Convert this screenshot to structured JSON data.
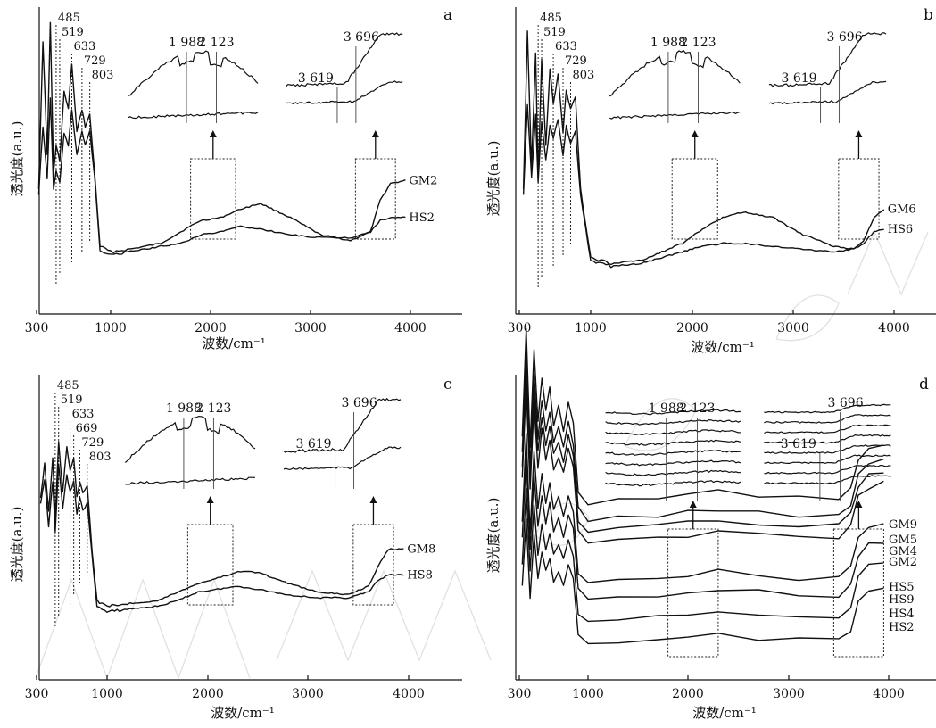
{
  "chart_data": [
    {
      "panel": "a",
      "type": "line",
      "xlabel": "波数/cm⁻¹",
      "ylabel": "透光度(a.u.)",
      "xlim": [
        300,
        4500
      ],
      "xticks": [
        300,
        1000,
        2000,
        3000,
        4000
      ],
      "peaks": [
        485,
        519,
        633,
        729,
        803
      ],
      "series": [
        {
          "name": "GM2",
          "x": [
            320,
            360,
            400,
            430,
            460,
            485,
            519,
            560,
            600,
            633,
            680,
            729,
            760,
            803,
            850,
            900,
            1000,
            1200,
            1500,
            1700,
            1900,
            2100,
            2300,
            2500,
            2800,
            3100,
            3400,
            3600,
            3696,
            3800,
            3950
          ],
          "y": [
            40,
            92,
            52,
            98,
            46,
            55,
            50,
            74,
            68,
            84,
            60,
            68,
            62,
            66,
            45,
            20,
            18,
            19,
            21,
            25,
            29,
            30,
            33,
            35,
            30,
            24,
            22,
            25,
            36,
            42,
            43
          ]
        },
        {
          "name": "HS2",
          "x": [
            320,
            360,
            400,
            430,
            460,
            485,
            519,
            560,
            600,
            633,
            680,
            729,
            760,
            803,
            850,
            900,
            1000,
            1200,
            1500,
            1700,
            1900,
            2100,
            2300,
            2500,
            2800,
            3100,
            3400,
            3600,
            3696,
            3800,
            3950
          ],
          "y": [
            38,
            62,
            44,
            72,
            40,
            46,
            42,
            60,
            55,
            68,
            52,
            60,
            56,
            60,
            44,
            18,
            17,
            18,
            20,
            21,
            24,
            25,
            27,
            26,
            24,
            23,
            23,
            25,
            29,
            30,
            30
          ]
        }
      ],
      "insets": [
        {
          "anchor_x": [
            1800,
            2250
          ],
          "marks": [
            "1 988",
            "2 123"
          ]
        },
        {
          "anchor_x": [
            3450,
            3850
          ],
          "marks": [
            "3 619",
            "3 696"
          ]
        }
      ]
    },
    {
      "panel": "b",
      "type": "line",
      "xlabel": "波数/cm⁻¹",
      "ylabel": "透光度(a.u.)",
      "xlim": [
        300,
        4500
      ],
      "xticks": [
        300,
        1000,
        2000,
        3000,
        4000
      ],
      "peaks": [
        485,
        519,
        633,
        729,
        803
      ],
      "series": [
        {
          "name": "GM6",
          "x": [
            340,
            380,
            420,
            460,
            485,
            519,
            560,
            600,
            633,
            680,
            729,
            760,
            803,
            850,
            900,
            1000,
            1200,
            1500,
            1700,
            1900,
            2100,
            2300,
            2500,
            2800,
            3100,
            3400,
            3600,
            3696,
            3800,
            3900
          ],
          "y": [
            40,
            95,
            48,
            88,
            44,
            85,
            55,
            82,
            70,
            80,
            60,
            75,
            68,
            72,
            40,
            16,
            14,
            15,
            18,
            21,
            26,
            30,
            32,
            30,
            24,
            20,
            19,
            22,
            30,
            33
          ]
        },
        {
          "name": "HS6",
          "x": [
            340,
            380,
            420,
            460,
            485,
            519,
            560,
            600,
            633,
            680,
            729,
            760,
            803,
            850,
            900,
            1000,
            1200,
            1500,
            1700,
            1900,
            2100,
            2300,
            2500,
            2800,
            3100,
            3400,
            3600,
            3696,
            3800,
            3900
          ],
          "y": [
            38,
            70,
            44,
            66,
            42,
            64,
            50,
            62,
            58,
            64,
            52,
            62,
            56,
            60,
            38,
            15,
            13,
            14,
            16,
            18,
            20,
            21,
            21,
            20,
            19,
            18,
            19,
            21,
            25,
            26
          ]
        }
      ],
      "insets": [
        {
          "anchor_x": [
            1800,
            2250
          ],
          "marks": [
            "1 988",
            "2 123"
          ]
        },
        {
          "anchor_x": [
            3450,
            3850
          ],
          "marks": [
            "3 619",
            "3 696"
          ]
        }
      ]
    },
    {
      "panel": "c",
      "type": "line",
      "xlabel": "波数/cm⁻¹",
      "ylabel": "透光度(a.u.)",
      "xlim": [
        300,
        4500
      ],
      "xticks": [
        300,
        1000,
        2000,
        3000,
        4000
      ],
      "peaks": [
        485,
        519,
        633,
        669,
        729,
        803
      ],
      "series": [
        {
          "name": "GM8",
          "x": [
            340,
            380,
            420,
            460,
            485,
            519,
            560,
            600,
            633,
            669,
            700,
            729,
            760,
            803,
            850,
            900,
            1000,
            1200,
            1500,
            1700,
            1900,
            2100,
            2300,
            2500,
            2800,
            3100,
            3400,
            3600,
            3696,
            3800,
            3950
          ],
          "y": [
            60,
            72,
            55,
            74,
            52,
            80,
            62,
            78,
            70,
            74,
            60,
            66,
            62,
            64,
            42,
            24,
            22,
            23,
            24,
            27,
            30,
            32,
            34,
            34,
            30,
            27,
            26,
            29,
            36,
            42,
            42
          ]
        },
        {
          "name": "HS8",
          "x": [
            340,
            380,
            420,
            460,
            485,
            519,
            560,
            600,
            633,
            669,
            700,
            729,
            760,
            803,
            850,
            900,
            1000,
            1200,
            1500,
            1700,
            1900,
            2100,
            2300,
            2500,
            2800,
            3100,
            3400,
            3600,
            3696,
            3800,
            3950
          ],
          "y": [
            58,
            66,
            50,
            66,
            48,
            72,
            56,
            68,
            62,
            66,
            54,
            60,
            56,
            58,
            40,
            22,
            20,
            21,
            22,
            24,
            27,
            28,
            29,
            28,
            26,
            25,
            25,
            27,
            31,
            33,
            33
          ]
        }
      ],
      "insets": [
        {
          "anchor_x": [
            1800,
            2250
          ],
          "marks": [
            "1 988",
            "2 123"
          ]
        },
        {
          "anchor_x": [
            3450,
            3850
          ],
          "marks": [
            "3 619",
            "3 696"
          ]
        }
      ]
    },
    {
      "panel": "d",
      "type": "line",
      "xlabel": "波数/cm⁻¹",
      "ylabel": "透光度(a.u.)",
      "xlim": [
        300,
        4500
      ],
      "xticks": [
        300,
        1000,
        2000,
        3000,
        4000
      ],
      "series_names": [
        "GM9",
        "GM5",
        "GM4",
        "GM2",
        "HS5",
        "HS9",
        "HS4",
        "HS2"
      ],
      "insets": [
        {
          "anchor_x": [
            1800,
            2300
          ],
          "marks": [
            "1 988",
            "2 123"
          ]
        },
        {
          "anchor_x": [
            3450,
            3950
          ],
          "marks": [
            "3 619",
            "3 696"
          ]
        }
      ]
    }
  ]
}
